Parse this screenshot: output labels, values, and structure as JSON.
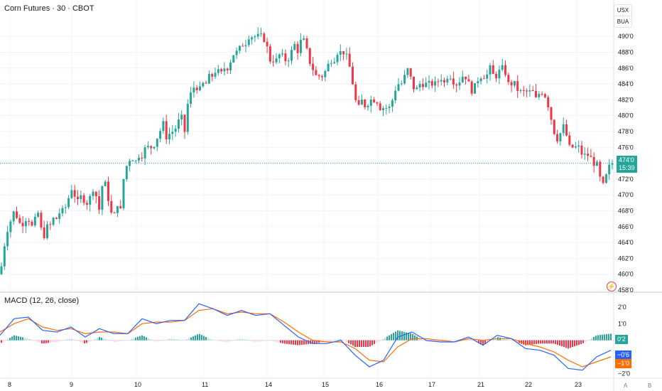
{
  "header": {
    "symbol_title": "Corn Futures · 30 · CBOT",
    "currency_top": "USX",
    "currency_bottom": "BUA"
  },
  "indicator": {
    "label": "MACD (12, 26, close)"
  },
  "price_axis": {
    "ticks": [
      "490'0",
      "488'0",
      "486'0",
      "484'0",
      "482'0",
      "480'0",
      "478'0",
      "476'0",
      "472'0",
      "470'0",
      "468'0",
      "466'0",
      "464'0",
      "462'0",
      "460'0",
      "458'0"
    ],
    "tick_values": [
      490,
      488,
      486,
      484,
      482,
      480,
      478,
      476,
      472,
      470,
      468,
      466,
      464,
      462,
      460,
      458
    ],
    "last_price_label": "474'0",
    "last_price_value": 474.0,
    "countdown": "15:39"
  },
  "macd_axis": {
    "ticks": [
      "2'0",
      "1'0",
      "−2'0"
    ],
    "tick_values": [
      2,
      1,
      -2
    ],
    "hist_tag": "0'2",
    "hist_value": 0.2,
    "macd_tag": "−0'6",
    "macd_value": -0.6,
    "signal_tag": "−1'0",
    "signal_value": -1.0
  },
  "time_axis": {
    "labels": [
      "8",
      "9",
      "10",
      "11",
      "14",
      "15",
      "16",
      "17",
      "21",
      "22",
      "23"
    ],
    "extra_buttons": [
      "A",
      "B"
    ]
  },
  "colors": {
    "up": "#26a69a",
    "down": "#f23645",
    "macd_line": "#2962ff",
    "signal_line": "#ff6d00",
    "grid": "#f0f3fa",
    "last_price_line": "#26a69a"
  },
  "chart_data": {
    "type": "candlestick",
    "title": "Corn Futures · 30 · CBOT",
    "y_range": [
      458,
      491
    ],
    "price_path": [
      [
        0,
        460
      ],
      [
        4,
        462
      ],
      [
        8,
        465
      ],
      [
        12,
        466
      ],
      [
        16,
        467
      ],
      [
        20,
        468
      ],
      [
        25,
        467
      ],
      [
        30,
        466
      ],
      [
        35,
        467
      ],
      [
        40,
        467
      ],
      [
        45,
        466
      ],
      [
        50,
        467
      ],
      [
        55,
        468
      ],
      [
        60,
        464
      ],
      [
        65,
        466
      ],
      [
        70,
        466
      ],
      [
        75,
        467
      ],
      [
        80,
        467
      ],
      [
        85,
        468
      ],
      [
        90,
        468
      ],
      [
        95,
        469
      ],
      [
        100,
        471
      ],
      [
        105,
        470
      ],
      [
        110,
        469
      ],
      [
        115,
        470
      ],
      [
        120,
        469
      ],
      [
        125,
        469
      ],
      [
        130,
        471
      ],
      [
        135,
        470
      ],
      [
        140,
        468
      ],
      [
        145,
        472
      ],
      [
        150,
        471
      ],
      [
        155,
        468
      ],
      [
        160,
        467
      ],
      [
        165,
        469
      ],
      [
        170,
        468
      ],
      [
        175,
        473
      ],
      [
        180,
        474
      ],
      [
        185,
        475
      ],
      [
        190,
        474
      ],
      [
        195,
        475
      ],
      [
        200,
        475
      ],
      [
        205,
        476
      ],
      [
        210,
        476
      ],
      [
        215,
        476
      ],
      [
        220,
        477
      ],
      [
        225,
        478
      ],
      [
        230,
        479
      ],
      [
        235,
        477
      ],
      [
        240,
        478
      ],
      [
        245,
        478
      ],
      [
        250,
        479
      ],
      [
        255,
        480
      ],
      [
        260,
        478
      ],
      [
        265,
        482
      ],
      [
        270,
        483
      ],
      [
        275,
        484
      ],
      [
        280,
        483
      ],
      [
        285,
        484
      ],
      [
        290,
        484
      ],
      [
        295,
        485
      ],
      [
        300,
        485
      ],
      [
        305,
        486
      ],
      [
        310,
        485
      ],
      [
        315,
        486
      ],
      [
        320,
        486
      ],
      [
        325,
        487
      ],
      [
        330,
        488
      ],
      [
        335,
        488
      ],
      [
        340,
        489
      ],
      [
        345,
        489
      ],
      [
        350,
        490
      ],
      [
        355,
        490
      ],
      [
        360,
        490
      ],
      [
        365,
        490
      ],
      [
        370,
        490
      ],
      [
        375,
        489
      ],
      [
        380,
        487
      ],
      [
        385,
        487
      ],
      [
        390,
        487
      ],
      [
        395,
        488
      ],
      [
        400,
        487
      ],
      [
        405,
        487
      ],
      [
        410,
        488
      ],
      [
        415,
        489
      ],
      [
        420,
        488
      ],
      [
        425,
        490
      ],
      [
        430,
        489
      ],
      [
        435,
        487
      ],
      [
        440,
        486
      ],
      [
        445,
        485
      ],
      [
        450,
        485
      ],
      [
        455,
        485
      ],
      [
        460,
        486
      ],
      [
        465,
        487
      ],
      [
        470,
        487
      ],
      [
        475,
        488
      ],
      [
        480,
        488
      ],
      [
        485,
        488
      ],
      [
        490,
        487
      ],
      [
        495,
        485
      ],
      [
        500,
        482
      ],
      [
        505,
        481
      ],
      [
        510,
        482
      ],
      [
        515,
        481
      ],
      [
        520,
        482
      ],
      [
        525,
        482
      ],
      [
        530,
        482
      ],
      [
        535,
        481
      ],
      [
        540,
        481
      ],
      [
        545,
        481
      ],
      [
        550,
        481
      ],
      [
        555,
        483
      ],
      [
        560,
        484
      ],
      [
        565,
        484
      ],
      [
        570,
        485
      ],
      [
        575,
        486
      ],
      [
        580,
        484
      ],
      [
        585,
        483
      ],
      [
        590,
        484
      ],
      [
        595,
        484
      ],
      [
        600,
        484
      ],
      [
        605,
        484
      ],
      [
        610,
        484
      ],
      [
        615,
        484
      ],
      [
        620,
        485
      ],
      [
        625,
        484
      ],
      [
        630,
        485
      ],
      [
        635,
        485
      ],
      [
        640,
        484
      ],
      [
        645,
        484
      ],
      [
        650,
        485
      ],
      [
        655,
        485
      ],
      [
        660,
        484
      ],
      [
        665,
        483
      ],
      [
        670,
        484
      ],
      [
        675,
        485
      ],
      [
        680,
        485
      ],
      [
        685,
        485
      ],
      [
        690,
        486
      ],
      [
        695,
        485
      ],
      [
        700,
        485
      ],
      [
        705,
        486
      ],
      [
        710,
        486
      ],
      [
        715,
        484
      ],
      [
        720,
        484
      ],
      [
        725,
        484
      ],
      [
        730,
        483
      ],
      [
        735,
        483
      ],
      [
        740,
        483
      ],
      [
        745,
        483
      ],
      [
        750,
        483
      ],
      [
        755,
        482
      ],
      [
        760,
        483
      ],
      [
        765,
        483
      ],
      [
        770,
        482
      ],
      [
        775,
        480
      ],
      [
        780,
        478
      ],
      [
        785,
        477
      ],
      [
        790,
        478
      ],
      [
        795,
        479
      ],
      [
        800,
        476
      ],
      [
        805,
        476
      ],
      [
        810,
        476
      ],
      [
        815,
        476
      ],
      [
        820,
        475
      ],
      [
        825,
        475
      ],
      [
        830,
        475
      ],
      [
        835,
        474
      ],
      [
        840,
        474
      ],
      [
        845,
        472
      ],
      [
        850,
        471
      ],
      [
        855,
        473
      ],
      [
        860,
        474
      ]
    ],
    "last_price": 474.0,
    "macd": {
      "label": "MACD (12, 26, close)",
      "y_range": [
        -2.2,
        2.3
      ],
      "macd_path": [
        [
          0,
          0.3
        ],
        [
          20,
          1.3
        ],
        [
          40,
          1.4
        ],
        [
          60,
          0.6
        ],
        [
          80,
          0.5
        ],
        [
          100,
          0.8
        ],
        [
          120,
          0.2
        ],
        [
          140,
          0.7
        ],
        [
          160,
          0.4
        ],
        [
          180,
          0.4
        ],
        [
          200,
          1.3
        ],
        [
          220,
          1.0
        ],
        [
          240,
          1.2
        ],
        [
          260,
          1.2
        ],
        [
          280,
          2.2
        ],
        [
          300,
          1.9
        ],
        [
          320,
          1.5
        ],
        [
          340,
          1.8
        ],
        [
          360,
          1.5
        ],
        [
          380,
          1.6
        ],
        [
          400,
          0.9
        ],
        [
          420,
          0.2
        ],
        [
          440,
          -0.2
        ],
        [
          460,
          -0.2
        ],
        [
          480,
          0.0
        ],
        [
          500,
          -0.9
        ],
        [
          520,
          -1.6
        ],
        [
          540,
          -1.2
        ],
        [
          560,
          0.2
        ],
        [
          580,
          0.5
        ],
        [
          600,
          0.0
        ],
        [
          620,
          -0.1
        ],
        [
          640,
          -0.1
        ],
        [
          660,
          0.2
        ],
        [
          680,
          -0.3
        ],
        [
          700,
          0.3
        ],
        [
          720,
          0.1
        ],
        [
          740,
          -0.5
        ],
        [
          760,
          -0.6
        ],
        [
          780,
          -0.9
        ],
        [
          800,
          -1.7
        ],
        [
          820,
          -1.8
        ],
        [
          840,
          -1.0
        ],
        [
          860,
          -0.6
        ]
      ],
      "signal_path": [
        [
          0,
          0.5
        ],
        [
          20,
          1.0
        ],
        [
          40,
          1.3
        ],
        [
          60,
          0.8
        ],
        [
          80,
          0.6
        ],
        [
          100,
          0.7
        ],
        [
          120,
          0.4
        ],
        [
          140,
          0.5
        ],
        [
          160,
          0.5
        ],
        [
          180,
          0.4
        ],
        [
          200,
          1.0
        ],
        [
          220,
          1.1
        ],
        [
          240,
          1.1
        ],
        [
          260,
          1.2
        ],
        [
          280,
          1.8
        ],
        [
          300,
          1.9
        ],
        [
          320,
          1.6
        ],
        [
          340,
          1.7
        ],
        [
          360,
          1.6
        ],
        [
          380,
          1.6
        ],
        [
          400,
          1.1
        ],
        [
          420,
          0.5
        ],
        [
          440,
          0.0
        ],
        [
          460,
          -0.1
        ],
        [
          480,
          -0.1
        ],
        [
          500,
          -0.5
        ],
        [
          520,
          -1.2
        ],
        [
          540,
          -1.3
        ],
        [
          560,
          -0.4
        ],
        [
          580,
          0.1
        ],
        [
          600,
          0.1
        ],
        [
          620,
          0.0
        ],
        [
          640,
          -0.1
        ],
        [
          660,
          0.1
        ],
        [
          680,
          0.0
        ],
        [
          700,
          0.1
        ],
        [
          720,
          0.1
        ],
        [
          740,
          -0.2
        ],
        [
          760,
          -0.4
        ],
        [
          780,
          -0.7
        ],
        [
          800,
          -1.2
        ],
        [
          820,
          -1.6
        ],
        [
          840,
          -1.3
        ],
        [
          860,
          -1.0
        ]
      ]
    }
  }
}
